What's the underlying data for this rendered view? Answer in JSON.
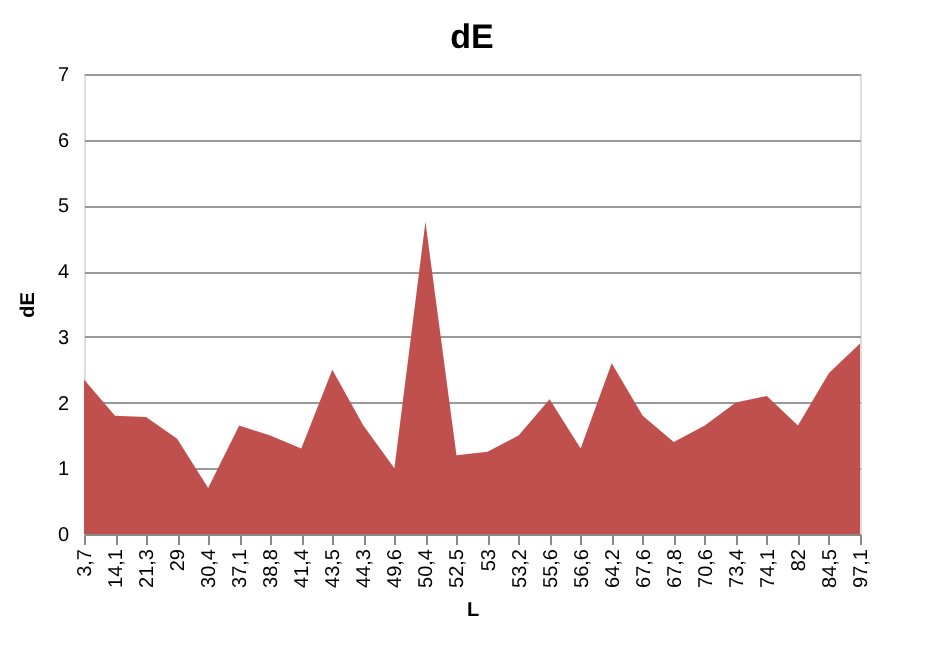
{
  "chart_data": {
    "type": "area",
    "title": "dE",
    "xlabel": "L",
    "ylabel": "dE",
    "categories": [
      "3,7",
      "14,1",
      "21,3",
      "29",
      "30,4",
      "37,1",
      "38,8",
      "41,4",
      "43,5",
      "44,3",
      "49,6",
      "50,4",
      "52,5",
      "53",
      "53,2",
      "55,6",
      "56,6",
      "64,2",
      "67,6",
      "67,8",
      "70,6",
      "73,4",
      "74,1",
      "82",
      "84,5",
      "97,1"
    ],
    "series": [
      {
        "color": "#c0504d",
        "values": [
          2.35,
          1.8,
          1.78,
          1.45,
          0.7,
          1.65,
          1.5,
          1.3,
          2.5,
          1.65,
          1.0,
          4.75,
          1.2,
          1.25,
          1.5,
          2.05,
          1.3,
          2.6,
          1.8,
          1.4,
          1.65,
          2.0,
          2.1,
          1.65,
          2.45,
          2.9
        ]
      }
    ],
    "ylim": [
      0,
      7
    ],
    "yticks": [
      0,
      1,
      2,
      3,
      4,
      5,
      6,
      7
    ],
    "grid": "y"
  }
}
